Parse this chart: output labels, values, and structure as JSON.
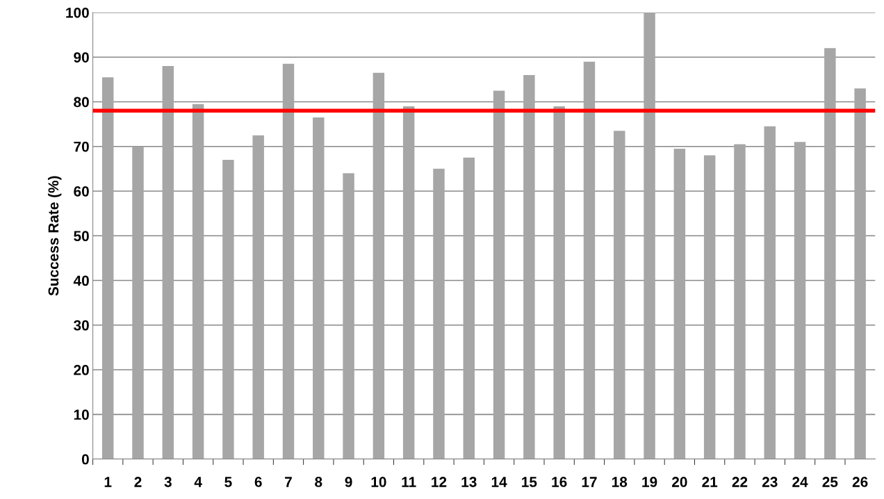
{
  "chart_data": {
    "type": "bar",
    "ylabel": "Success Rate (%)",
    "categories": [
      "1",
      "2",
      "3",
      "4",
      "5",
      "6",
      "7",
      "8",
      "9",
      "10",
      "11",
      "12",
      "13",
      "14",
      "15",
      "16",
      "17",
      "18",
      "19",
      "20",
      "21",
      "22",
      "23",
      "24",
      "25",
      "26"
    ],
    "values": [
      85.5,
      70,
      88,
      79.5,
      67,
      72.5,
      88.5,
      76.5,
      64,
      86.5,
      79,
      65,
      67.5,
      82.5,
      86,
      79,
      89,
      73.5,
      100,
      69.5,
      68,
      70.5,
      74.5,
      71,
      92,
      83
    ],
    "color": "#a6a6a6",
    "ylim": [
      0,
      100
    ],
    "yticks": [
      0,
      10,
      20,
      30,
      40,
      50,
      60,
      70,
      80,
      90,
      100
    ],
    "grid": "y",
    "ref_lines": [
      {
        "axis": "y",
        "value": 78,
        "color": "#ff0000",
        "line_style": "solid"
      }
    ]
  }
}
